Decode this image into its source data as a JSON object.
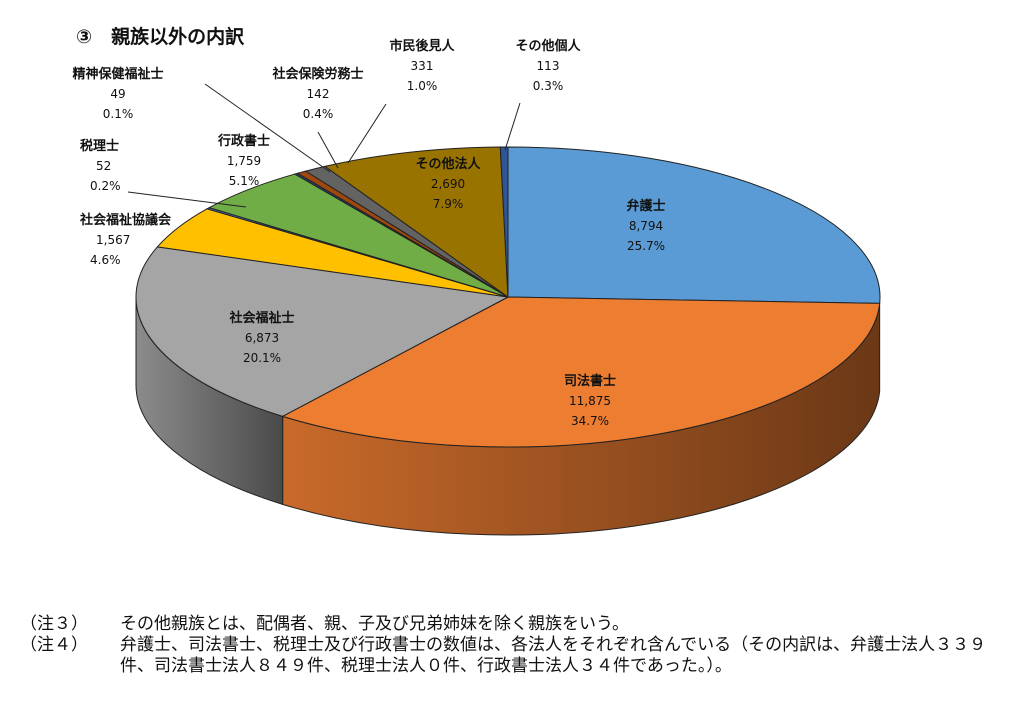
{
  "chart_data": {
    "type": "pie",
    "title": "③　親族以外の内訳",
    "slices": [
      {
        "label": "弁護士",
        "value": 8794,
        "percent": "25.7%",
        "color": "#5b9bd5"
      },
      {
        "label": "司法書士",
        "value": 11875,
        "percent": "34.7%",
        "color": "#ed7d31"
      },
      {
        "label": "社会福祉士",
        "value": 6873,
        "percent": "20.1%",
        "color": "#a5a5a5"
      },
      {
        "label": "社会福祉協議会",
        "value": 1567,
        "percent": "4.6%",
        "color": "#ffc000"
      },
      {
        "label": "税理士",
        "value": 52,
        "percent": "0.2%",
        "color": "#4472c4"
      },
      {
        "label": "行政書士",
        "value": 1759,
        "percent": "5.1%",
        "color": "#70ad47"
      },
      {
        "label": "精神保健福祉士",
        "value": 49,
        "percent": "0.1%",
        "color": "#264478"
      },
      {
        "label": "社会保険労務士",
        "value": 142,
        "percent": "0.4%",
        "color": "#9e480e"
      },
      {
        "label": "市民後見人",
        "value": 331,
        "percent": "1.0%",
        "color": "#636363"
      },
      {
        "label": "その他法人",
        "value": 2690,
        "percent": "7.9%",
        "color": "#997300"
      },
      {
        "label": "その他個人",
        "value": 113,
        "percent": "0.3%",
        "color": "#2f5597"
      }
    ],
    "value_labels": [
      "8,794",
      "11,875",
      "6,873",
      "1,567",
      "52",
      "1,759",
      "49",
      "142",
      "331",
      "2,690",
      "113"
    ]
  },
  "notes": [
    {
      "mark": "（注３）",
      "text": "その他親族とは、配偶者、親、子及び兄弟姉妹を除く親族をいう。"
    },
    {
      "mark": "（注４）",
      "text": "弁護士、司法書士、税理士及び行政書士の数値は、各法人をそれぞれ含んでいる（その内訳は、弁護士法人３３９件、司法書士法人８４９件、税理士法人０件、行政書士法人３４件であった。）。"
    }
  ]
}
